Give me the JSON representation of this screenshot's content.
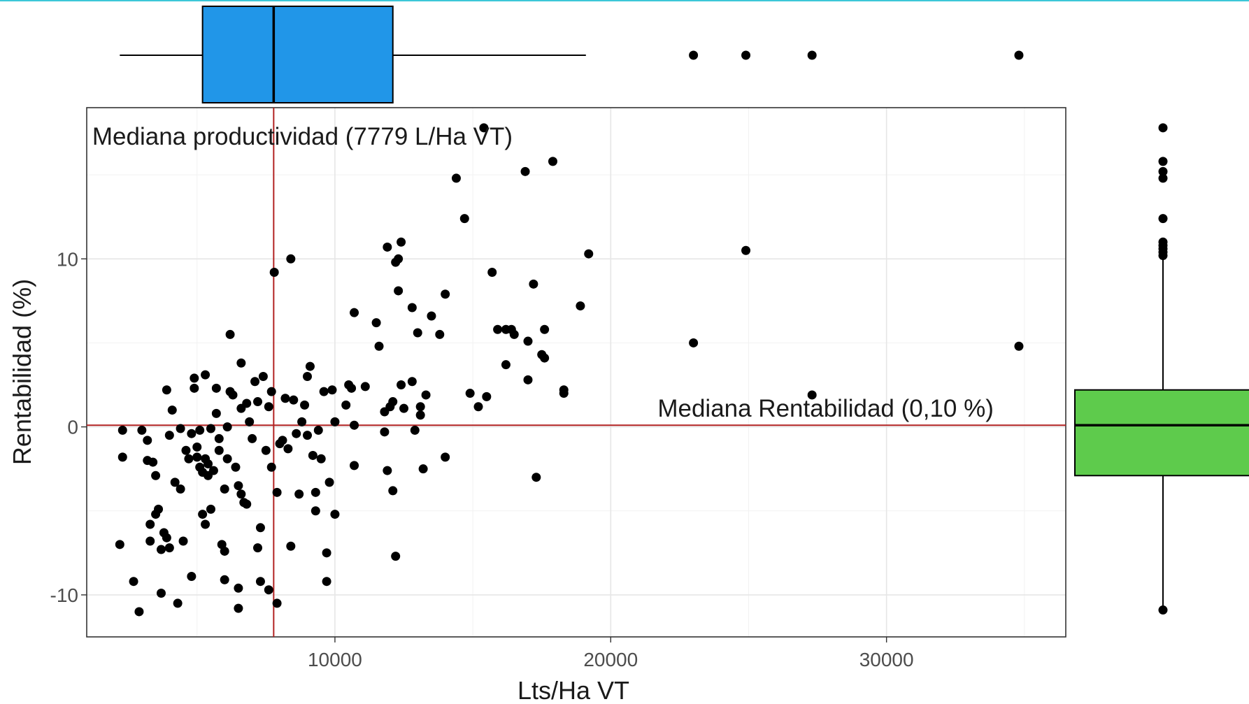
{
  "chart_data": {
    "type": "scatter",
    "xlabel": "Lts/Ha  VT",
    "ylabel": "Rentabilidad (%)",
    "xlim": [
      1000,
      36500
    ],
    "ylim": [
      -12.5,
      19
    ],
    "x_ticks": [
      10000,
      20000,
      30000
    ],
    "x_tick_labels": [
      "10000",
      "20000",
      "30000"
    ],
    "y_ticks": [
      -10,
      0,
      10
    ],
    "y_tick_labels": [
      "-10",
      "0",
      "10"
    ],
    "grid": true,
    "reference_lines": [
      {
        "axis": "x",
        "value": 7779,
        "color": "#b22222"
      },
      {
        "axis": "y",
        "value": 0.1,
        "color": "#b22222"
      }
    ],
    "annotations": [
      {
        "text": "Mediana productividad (7779 L/Ha VT)",
        "x": 1200,
        "y": 16.8
      },
      {
        "text": "Mediana Rentabilidad (0,10 %)",
        "x": 21700,
        "y": 0.6
      }
    ],
    "marginal_x_boxplot": {
      "color": "#2196e8",
      "min": 2200,
      "q1": 5200,
      "median": 7779,
      "q3": 12100,
      "max": 19100,
      "outliers": [
        23000,
        24900,
        27300,
        34800
      ]
    },
    "marginal_y_boxplot": {
      "color": "#5ecb4c",
      "min": -10.9,
      "q1": -2.9,
      "median": 0.1,
      "q3": 2.2,
      "max": 10.0,
      "outliers": [
        10.2,
        10.4,
        10.6,
        10.8,
        11.0,
        12.4,
        14.8,
        15.2,
        15.8,
        17.8
      ]
    },
    "points": [
      [
        2300,
        -0.2
      ],
      [
        2300,
        -1.8
      ],
      [
        2200,
        -7.0
      ],
      [
        2700,
        -9.2
      ],
      [
        2900,
        -11.0
      ],
      [
        3000,
        -0.2
      ],
      [
        3200,
        -0.8
      ],
      [
        3200,
        -2.0
      ],
      [
        3300,
        -6.8
      ],
      [
        3400,
        -2.1
      ],
      [
        3300,
        -5.8
      ],
      [
        3500,
        -5.2
      ],
      [
        3500,
        -2.9
      ],
      [
        3600,
        -4.9
      ],
      [
        3700,
        -7.3
      ],
      [
        3700,
        -9.9
      ],
      [
        3800,
        -6.3
      ],
      [
        3900,
        2.2
      ],
      [
        3900,
        -6.6
      ],
      [
        4000,
        -7.2
      ],
      [
        4000,
        -0.5
      ],
      [
        4100,
        1.0
      ],
      [
        4200,
        -3.3
      ],
      [
        4300,
        -10.5
      ],
      [
        4400,
        -0.1
      ],
      [
        4400,
        -3.7
      ],
      [
        4500,
        -6.8
      ],
      [
        4600,
        -1.4
      ],
      [
        4700,
        -1.9
      ],
      [
        4800,
        -0.4
      ],
      [
        4800,
        -8.9
      ],
      [
        4900,
        2.3
      ],
      [
        4900,
        2.9
      ],
      [
        5000,
        -1.2
      ],
      [
        5000,
        -1.8
      ],
      [
        5100,
        -0.2
      ],
      [
        5100,
        -2.4
      ],
      [
        5200,
        -2.7
      ],
      [
        5200,
        -5.2
      ],
      [
        5300,
        3.1
      ],
      [
        5300,
        -1.9
      ],
      [
        5300,
        -5.8
      ],
      [
        5400,
        -2.2
      ],
      [
        5400,
        -2.9
      ],
      [
        5500,
        -4.9
      ],
      [
        5500,
        -0.1
      ],
      [
        5600,
        -2.6
      ],
      [
        5700,
        0.8
      ],
      [
        5700,
        2.3
      ],
      [
        5800,
        -1.4
      ],
      [
        5800,
        -0.7
      ],
      [
        5900,
        -7.0
      ],
      [
        6000,
        -7.4
      ],
      [
        6000,
        -9.1
      ],
      [
        6000,
        -3.7
      ],
      [
        6100,
        0.0
      ],
      [
        6100,
        -1.9
      ],
      [
        6200,
        5.5
      ],
      [
        6200,
        2.1
      ],
      [
        6300,
        1.9
      ],
      [
        6400,
        -2.4
      ],
      [
        6500,
        -10.8
      ],
      [
        6500,
        -9.6
      ],
      [
        6500,
        -3.5
      ],
      [
        6600,
        3.8
      ],
      [
        6600,
        1.1
      ],
      [
        6600,
        -4.0
      ],
      [
        6700,
        -4.5
      ],
      [
        6800,
        1.4
      ],
      [
        6800,
        -4.6
      ],
      [
        6900,
        0.3
      ],
      [
        7000,
        -0.7
      ],
      [
        7100,
        2.7
      ],
      [
        7200,
        1.5
      ],
      [
        7200,
        -7.2
      ],
      [
        7300,
        -6.0
      ],
      [
        7300,
        -9.2
      ],
      [
        7400,
        3.0
      ],
      [
        7500,
        -1.4
      ],
      [
        7600,
        -9.7
      ],
      [
        7600,
        1.2
      ],
      [
        7700,
        2.1
      ],
      [
        7700,
        -2.4
      ],
      [
        7800,
        9.2
      ],
      [
        7900,
        -10.5
      ],
      [
        7900,
        -3.9
      ],
      [
        8000,
        -1.0
      ],
      [
        8100,
        -0.8
      ],
      [
        8200,
        1.7
      ],
      [
        8300,
        -1.3
      ],
      [
        8400,
        10.0
      ],
      [
        8400,
        -7.1
      ],
      [
        8500,
        1.6
      ],
      [
        8600,
        -0.4
      ],
      [
        8700,
        -4.0
      ],
      [
        8800,
        0.3
      ],
      [
        8900,
        1.3
      ],
      [
        9000,
        3.0
      ],
      [
        9000,
        -0.5
      ],
      [
        9100,
        3.6
      ],
      [
        9200,
        -1.7
      ],
      [
        9300,
        -3.9
      ],
      [
        9300,
        -5.0
      ],
      [
        9400,
        -0.2
      ],
      [
        9500,
        -1.9
      ],
      [
        9600,
        2.1
      ],
      [
        9700,
        -7.5
      ],
      [
        9700,
        -9.2
      ],
      [
        9800,
        -3.3
      ],
      [
        9900,
        2.2
      ],
      [
        10000,
        0.3
      ],
      [
        10000,
        -5.2
      ],
      [
        10400,
        1.3
      ],
      [
        10500,
        2.5
      ],
      [
        10600,
        2.3
      ],
      [
        10700,
        0.1
      ],
      [
        10700,
        6.8
      ],
      [
        10700,
        -2.3
      ],
      [
        11100,
        2.4
      ],
      [
        11500,
        6.2
      ],
      [
        11600,
        4.8
      ],
      [
        11800,
        0.9
      ],
      [
        11800,
        -0.3
      ],
      [
        11900,
        10.7
      ],
      [
        11900,
        -2.6
      ],
      [
        12000,
        1.2
      ],
      [
        12100,
        1.5
      ],
      [
        12100,
        -3.8
      ],
      [
        12200,
        -7.7
      ],
      [
        12200,
        9.8
      ],
      [
        12300,
        10.0
      ],
      [
        12300,
        8.1
      ],
      [
        12400,
        11.0
      ],
      [
        12400,
        2.5
      ],
      [
        12500,
        1.1
      ],
      [
        12800,
        7.1
      ],
      [
        12800,
        2.7
      ],
      [
        12900,
        -0.2
      ],
      [
        13000,
        5.6
      ],
      [
        13100,
        0.7
      ],
      [
        13100,
        1.2
      ],
      [
        13200,
        -2.5
      ],
      [
        13300,
        1.9
      ],
      [
        13500,
        6.6
      ],
      [
        13800,
        5.5
      ],
      [
        14000,
        7.9
      ],
      [
        14000,
        -1.8
      ],
      [
        14400,
        14.8
      ],
      [
        14700,
        12.4
      ],
      [
        14900,
        2.0
      ],
      [
        15200,
        1.2
      ],
      [
        15400,
        17.8
      ],
      [
        15500,
        1.8
      ],
      [
        15700,
        9.2
      ],
      [
        15900,
        5.8
      ],
      [
        16200,
        3.7
      ],
      [
        16200,
        5.8
      ],
      [
        16400,
        5.8
      ],
      [
        16500,
        5.5
      ],
      [
        16900,
        15.2
      ],
      [
        17000,
        2.8
      ],
      [
        17000,
        5.1
      ],
      [
        17200,
        8.5
      ],
      [
        17300,
        -3.0
      ],
      [
        17500,
        4.3
      ],
      [
        17600,
        5.8
      ],
      [
        17600,
        4.1
      ],
      [
        17900,
        15.8
      ],
      [
        18300,
        2.0
      ],
      [
        18300,
        2.2
      ],
      [
        18900,
        7.2
      ],
      [
        19200,
        10.3
      ],
      [
        23000,
        5.0
      ],
      [
        24900,
        10.5
      ],
      [
        27300,
        1.9
      ],
      [
        34800,
        4.8
      ]
    ]
  }
}
